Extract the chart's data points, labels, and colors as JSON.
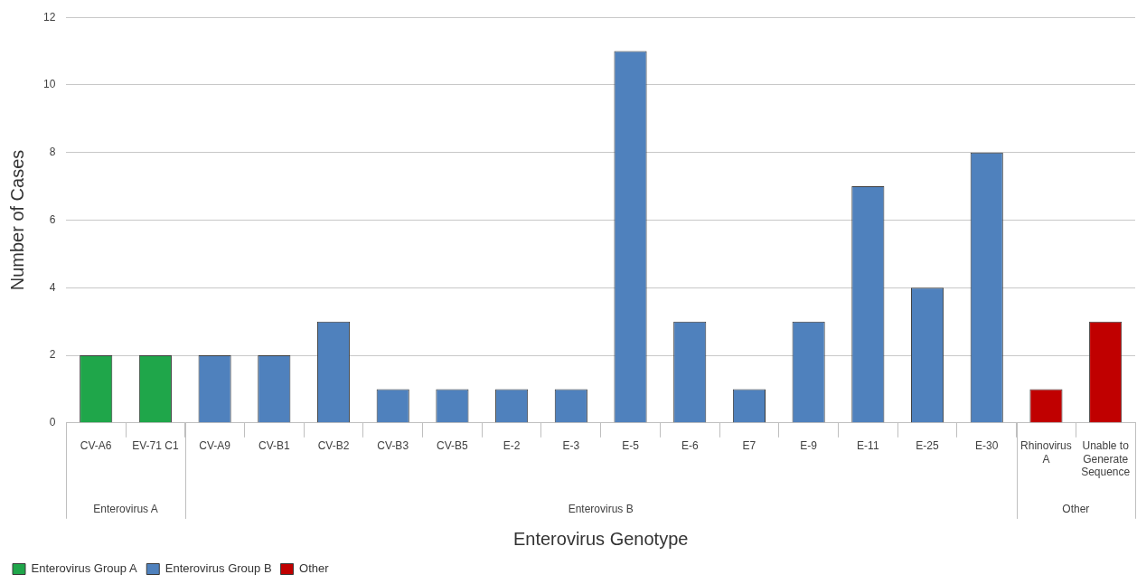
{
  "chart_data": {
    "type": "bar",
    "xlabel": "Enterovirus Genotype",
    "ylabel": "Number of Cases",
    "categories": [
      "CV-A6",
      "EV-71 C1",
      "CV-A9",
      "CV-B1",
      "CV-B2",
      "CV-B3",
      "CV-B5",
      "E-2",
      "E-3",
      "E-5",
      "E-6",
      "E7",
      "E-9",
      "E-11",
      "E-25",
      "E-30",
      "Rhinovirus A",
      "Unable to Generate Sequence"
    ],
    "series": [
      {
        "name": "Enterovirus Group A",
        "color": "#1fa64a",
        "values": [
          2,
          2,
          null,
          null,
          null,
          null,
          null,
          null,
          null,
          null,
          null,
          null,
          null,
          null,
          null,
          null,
          null,
          null
        ]
      },
      {
        "name": "Enterovirus Group B",
        "color": "#4f81bd",
        "values": [
          null,
          null,
          2,
          2,
          3,
          1,
          1,
          1,
          1,
          11,
          3,
          1,
          3,
          7,
          4,
          8,
          null,
          null
        ]
      },
      {
        "name": "Other",
        "color": "#c00000",
        "values": [
          null,
          null,
          null,
          null,
          null,
          null,
          null,
          null,
          null,
          null,
          null,
          null,
          null,
          null,
          null,
          null,
          1,
          3
        ]
      }
    ],
    "annotations": [
      "Enterovirus A",
      "Enterovirus B",
      "Other"
    ],
    "ylim": [
      0,
      12
    ],
    "yticks": [
      0,
      2,
      4,
      6,
      8,
      10,
      12
    ],
    "grid": "y",
    "legend": "bottom left"
  }
}
